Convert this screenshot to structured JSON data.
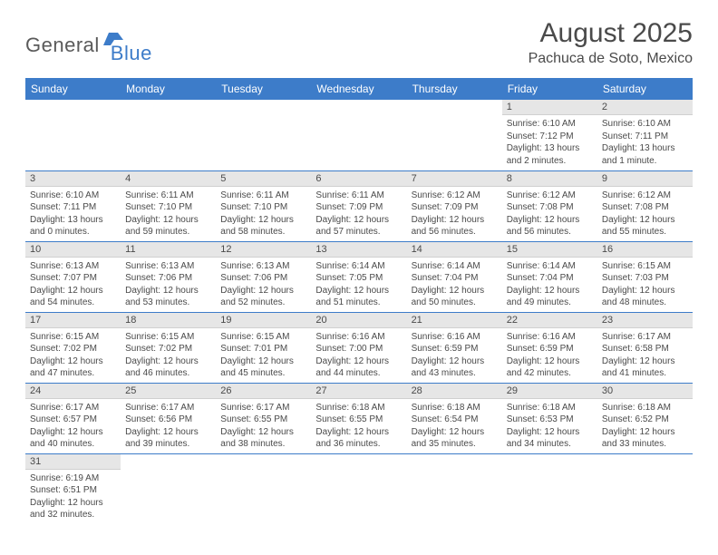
{
  "logo": {
    "text1": "General",
    "text2": "Blue",
    "icon_color": "#3d7cc9",
    "text1_color": "#5a5a5a"
  },
  "header": {
    "month_title": "August 2025",
    "location": "Pachuca de Soto, Mexico"
  },
  "colors": {
    "header_bg": "#3d7cc9",
    "header_text": "#ffffff",
    "daynum_bg": "#e6e6e6",
    "border": "#3d7cc9",
    "text": "#4a4a4a"
  },
  "days_of_week": [
    "Sunday",
    "Monday",
    "Tuesday",
    "Wednesday",
    "Thursday",
    "Friday",
    "Saturday"
  ],
  "weeks": [
    [
      null,
      null,
      null,
      null,
      null,
      {
        "n": "1",
        "l1": "Sunrise: 6:10 AM",
        "l2": "Sunset: 7:12 PM",
        "l3": "Daylight: 13 hours",
        "l4": "and 2 minutes."
      },
      {
        "n": "2",
        "l1": "Sunrise: 6:10 AM",
        "l2": "Sunset: 7:11 PM",
        "l3": "Daylight: 13 hours",
        "l4": "and 1 minute."
      }
    ],
    [
      {
        "n": "3",
        "l1": "Sunrise: 6:10 AM",
        "l2": "Sunset: 7:11 PM",
        "l3": "Daylight: 13 hours",
        "l4": "and 0 minutes."
      },
      {
        "n": "4",
        "l1": "Sunrise: 6:11 AM",
        "l2": "Sunset: 7:10 PM",
        "l3": "Daylight: 12 hours",
        "l4": "and 59 minutes."
      },
      {
        "n": "5",
        "l1": "Sunrise: 6:11 AM",
        "l2": "Sunset: 7:10 PM",
        "l3": "Daylight: 12 hours",
        "l4": "and 58 minutes."
      },
      {
        "n": "6",
        "l1": "Sunrise: 6:11 AM",
        "l2": "Sunset: 7:09 PM",
        "l3": "Daylight: 12 hours",
        "l4": "and 57 minutes."
      },
      {
        "n": "7",
        "l1": "Sunrise: 6:12 AM",
        "l2": "Sunset: 7:09 PM",
        "l3": "Daylight: 12 hours",
        "l4": "and 56 minutes."
      },
      {
        "n": "8",
        "l1": "Sunrise: 6:12 AM",
        "l2": "Sunset: 7:08 PM",
        "l3": "Daylight: 12 hours",
        "l4": "and 56 minutes."
      },
      {
        "n": "9",
        "l1": "Sunrise: 6:12 AM",
        "l2": "Sunset: 7:08 PM",
        "l3": "Daylight: 12 hours",
        "l4": "and 55 minutes."
      }
    ],
    [
      {
        "n": "10",
        "l1": "Sunrise: 6:13 AM",
        "l2": "Sunset: 7:07 PM",
        "l3": "Daylight: 12 hours",
        "l4": "and 54 minutes."
      },
      {
        "n": "11",
        "l1": "Sunrise: 6:13 AM",
        "l2": "Sunset: 7:06 PM",
        "l3": "Daylight: 12 hours",
        "l4": "and 53 minutes."
      },
      {
        "n": "12",
        "l1": "Sunrise: 6:13 AM",
        "l2": "Sunset: 7:06 PM",
        "l3": "Daylight: 12 hours",
        "l4": "and 52 minutes."
      },
      {
        "n": "13",
        "l1": "Sunrise: 6:14 AM",
        "l2": "Sunset: 7:05 PM",
        "l3": "Daylight: 12 hours",
        "l4": "and 51 minutes."
      },
      {
        "n": "14",
        "l1": "Sunrise: 6:14 AM",
        "l2": "Sunset: 7:04 PM",
        "l3": "Daylight: 12 hours",
        "l4": "and 50 minutes."
      },
      {
        "n": "15",
        "l1": "Sunrise: 6:14 AM",
        "l2": "Sunset: 7:04 PM",
        "l3": "Daylight: 12 hours",
        "l4": "and 49 minutes."
      },
      {
        "n": "16",
        "l1": "Sunrise: 6:15 AM",
        "l2": "Sunset: 7:03 PM",
        "l3": "Daylight: 12 hours",
        "l4": "and 48 minutes."
      }
    ],
    [
      {
        "n": "17",
        "l1": "Sunrise: 6:15 AM",
        "l2": "Sunset: 7:02 PM",
        "l3": "Daylight: 12 hours",
        "l4": "and 47 minutes."
      },
      {
        "n": "18",
        "l1": "Sunrise: 6:15 AM",
        "l2": "Sunset: 7:02 PM",
        "l3": "Daylight: 12 hours",
        "l4": "and 46 minutes."
      },
      {
        "n": "19",
        "l1": "Sunrise: 6:15 AM",
        "l2": "Sunset: 7:01 PM",
        "l3": "Daylight: 12 hours",
        "l4": "and 45 minutes."
      },
      {
        "n": "20",
        "l1": "Sunrise: 6:16 AM",
        "l2": "Sunset: 7:00 PM",
        "l3": "Daylight: 12 hours",
        "l4": "and 44 minutes."
      },
      {
        "n": "21",
        "l1": "Sunrise: 6:16 AM",
        "l2": "Sunset: 6:59 PM",
        "l3": "Daylight: 12 hours",
        "l4": "and 43 minutes."
      },
      {
        "n": "22",
        "l1": "Sunrise: 6:16 AM",
        "l2": "Sunset: 6:59 PM",
        "l3": "Daylight: 12 hours",
        "l4": "and 42 minutes."
      },
      {
        "n": "23",
        "l1": "Sunrise: 6:17 AM",
        "l2": "Sunset: 6:58 PM",
        "l3": "Daylight: 12 hours",
        "l4": "and 41 minutes."
      }
    ],
    [
      {
        "n": "24",
        "l1": "Sunrise: 6:17 AM",
        "l2": "Sunset: 6:57 PM",
        "l3": "Daylight: 12 hours",
        "l4": "and 40 minutes."
      },
      {
        "n": "25",
        "l1": "Sunrise: 6:17 AM",
        "l2": "Sunset: 6:56 PM",
        "l3": "Daylight: 12 hours",
        "l4": "and 39 minutes."
      },
      {
        "n": "26",
        "l1": "Sunrise: 6:17 AM",
        "l2": "Sunset: 6:55 PM",
        "l3": "Daylight: 12 hours",
        "l4": "and 38 minutes."
      },
      {
        "n": "27",
        "l1": "Sunrise: 6:18 AM",
        "l2": "Sunset: 6:55 PM",
        "l3": "Daylight: 12 hours",
        "l4": "and 36 minutes."
      },
      {
        "n": "28",
        "l1": "Sunrise: 6:18 AM",
        "l2": "Sunset: 6:54 PM",
        "l3": "Daylight: 12 hours",
        "l4": "and 35 minutes."
      },
      {
        "n": "29",
        "l1": "Sunrise: 6:18 AM",
        "l2": "Sunset: 6:53 PM",
        "l3": "Daylight: 12 hours",
        "l4": "and 34 minutes."
      },
      {
        "n": "30",
        "l1": "Sunrise: 6:18 AM",
        "l2": "Sunset: 6:52 PM",
        "l3": "Daylight: 12 hours",
        "l4": "and 33 minutes."
      }
    ],
    [
      {
        "n": "31",
        "l1": "Sunrise: 6:19 AM",
        "l2": "Sunset: 6:51 PM",
        "l3": "Daylight: 12 hours",
        "l4": "and 32 minutes."
      },
      null,
      null,
      null,
      null,
      null,
      null
    ]
  ]
}
